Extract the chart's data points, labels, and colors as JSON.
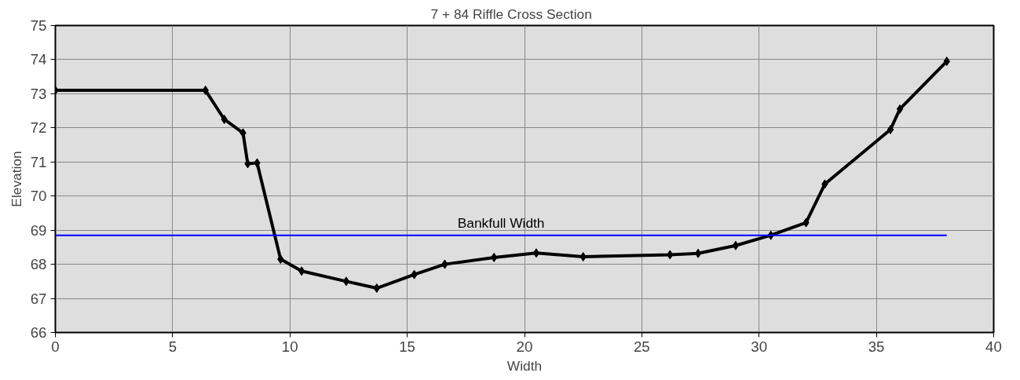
{
  "chart_data": {
    "type": "line",
    "title": "7 + 84        Riffle Cross Section",
    "xlabel": "Width",
    "ylabel": "Elevation",
    "xlim": [
      0,
      40
    ],
    "xticks": [
      0,
      5,
      10,
      15,
      20,
      25,
      30,
      35,
      40
    ],
    "ylim": [
      66,
      75
    ],
    "yticks": [
      66,
      67,
      68,
      69,
      70,
      71,
      72,
      73,
      74,
      75
    ],
    "grid": true,
    "series": [
      {
        "color": "#000000",
        "marker": "diamond",
        "x": [
          0,
          6.4,
          7.2,
          8.0,
          8.2,
          8.6,
          9.6,
          10.5,
          12.4,
          13.7,
          15.3,
          16.6,
          18.7,
          20.5,
          22.5,
          26.2,
          27.4,
          29.0,
          30.5,
          32.0,
          32.8,
          35.6,
          36.0,
          38.0
        ],
        "values": [
          73.1,
          73.1,
          72.25,
          71.85,
          70.95,
          70.97,
          68.15,
          67.8,
          67.5,
          67.3,
          67.7,
          68.0,
          68.2,
          68.33,
          68.22,
          68.28,
          68.32,
          68.55,
          68.85,
          69.22,
          70.35,
          71.95,
          72.55,
          73.95
        ]
      },
      {
        "name": "Bankfull Width",
        "color": "#0000ff",
        "marker": "none",
        "x": [
          0,
          38.0
        ],
        "values": [
          68.85,
          68.85
        ]
      }
    ]
  }
}
